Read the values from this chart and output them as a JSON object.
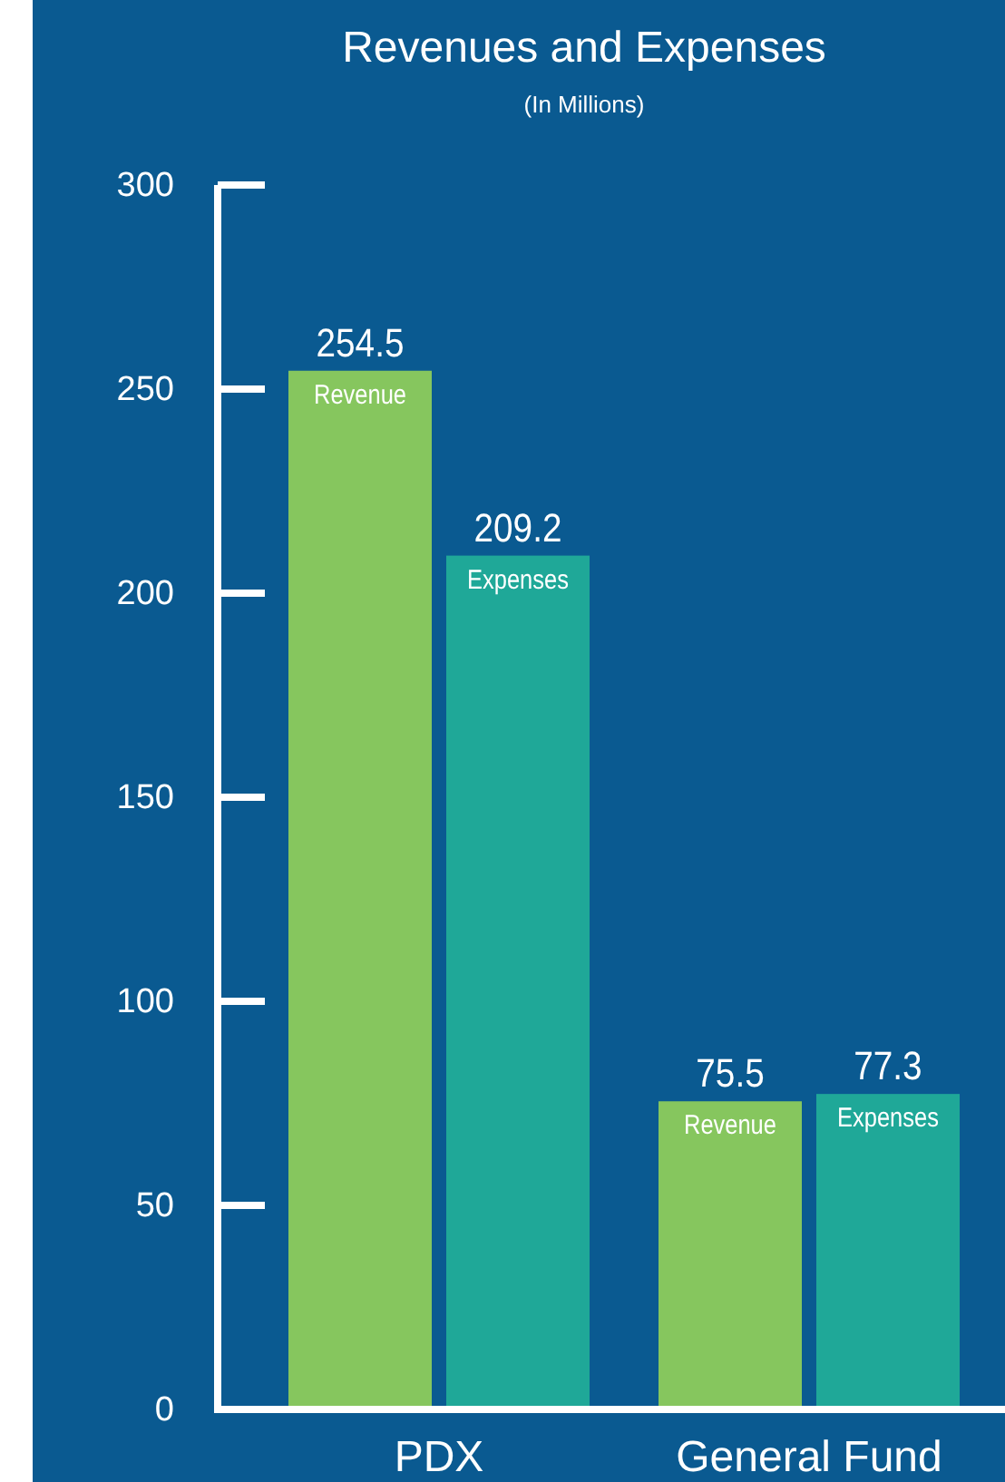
{
  "chart_data": {
    "type": "bar",
    "title": "Revenues and Expenses",
    "subtitle": "(In Millions)",
    "categories": [
      "PDX",
      "General Fund"
    ],
    "series": [
      {
        "name": "Revenue",
        "color": "#86c65e",
        "values": [
          254.5,
          75.5
        ]
      },
      {
        "name": "Expenses",
        "color": "#1fa898",
        "values": [
          209.2,
          77.3
        ]
      }
    ],
    "ylim": [
      0,
      300
    ],
    "yticks": [
      0,
      50,
      100,
      150,
      200,
      250,
      300
    ],
    "grid": false,
    "data_labels": true
  }
}
